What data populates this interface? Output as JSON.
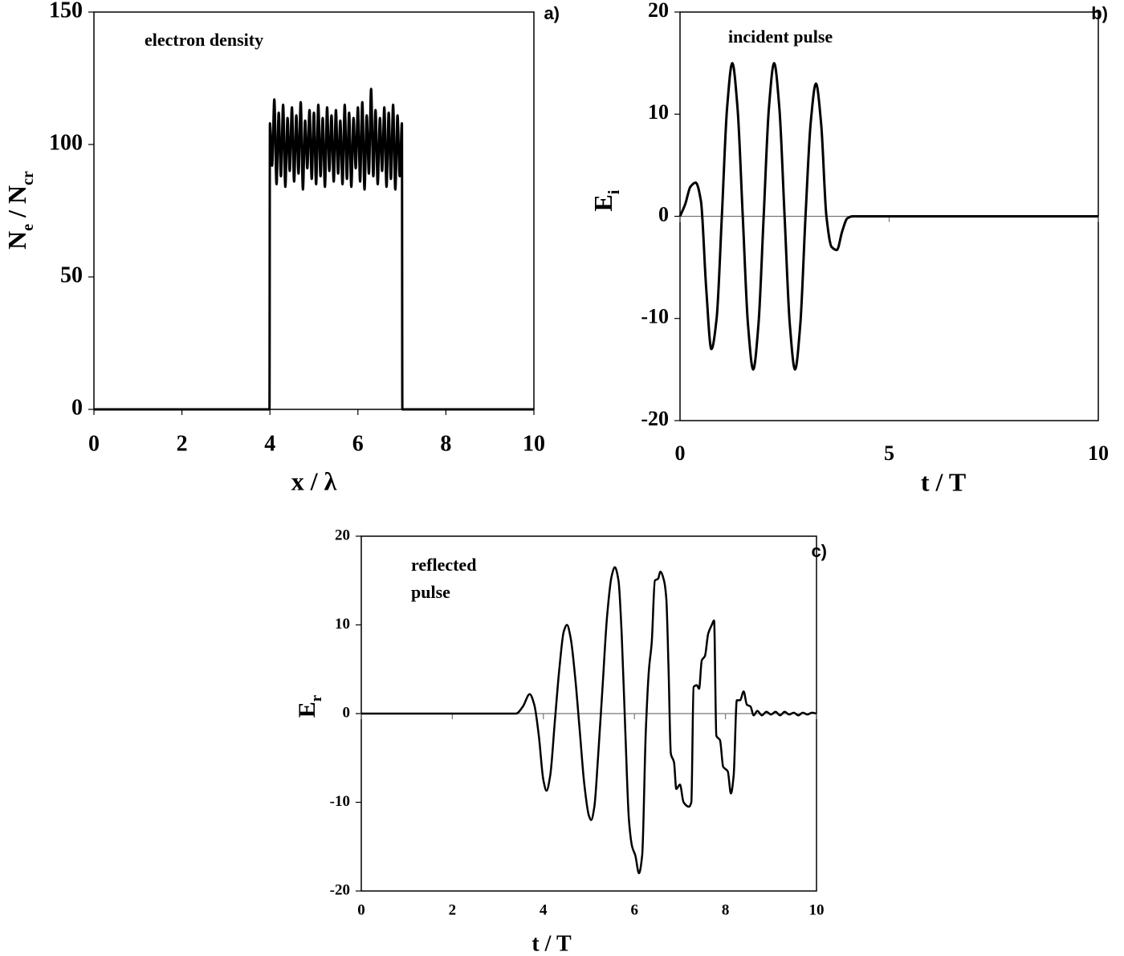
{
  "chart_data": [
    {
      "type": "line",
      "panel_label": "a)",
      "annotation": "electron density",
      "xlabel": "x / λ",
      "ylabel": [
        "N",
        "e",
        " / N",
        "cr"
      ],
      "xlim": [
        0,
        10
      ],
      "xticks": [
        0,
        2,
        4,
        6,
        8,
        10
      ],
      "ylim": [
        0,
        150
      ],
      "yticks": [
        0,
        50,
        100,
        150
      ],
      "zero_line": false,
      "series": [
        {
          "color": "#000000",
          "x": [
            0,
            3.99,
            4,
            4.05,
            4.1,
            4.15,
            4.2,
            4.25,
            4.3,
            4.35,
            4.4,
            4.45,
            4.5,
            4.55,
            4.6,
            4.65,
            4.7,
            4.75,
            4.8,
            4.85,
            4.9,
            4.95,
            5,
            5.05,
            5.1,
            5.15,
            5.2,
            5.25,
            5.3,
            5.35,
            5.4,
            5.45,
            5.5,
            5.55,
            5.6,
            5.65,
            5.7,
            5.75,
            5.8,
            5.85,
            5.9,
            5.95,
            6,
            6.05,
            6.1,
            6.15,
            6.2,
            6.25,
            6.3,
            6.35,
            6.4,
            6.45,
            6.5,
            6.55,
            6.6,
            6.65,
            6.7,
            6.75,
            6.8,
            6.85,
            6.9,
            6.95,
            7,
            7.01,
            10
          ],
          "values": [
            0,
            0,
            108,
            92,
            117,
            85,
            112,
            88,
            115,
            84,
            110,
            90,
            114,
            86,
            111,
            89,
            116,
            83,
            109,
            91,
            113,
            87,
            112,
            85,
            115,
            88,
            110,
            84,
            114,
            90,
            111,
            86,
            113,
            89,
            109,
            85,
            115,
            87,
            112,
            84,
            110,
            91,
            114,
            86,
            116,
            83,
            111,
            89,
            121,
            88,
            113,
            85,
            110,
            90,
            114,
            84,
            112,
            87,
            115,
            83,
            111,
            88,
            108,
            0,
            0
          ]
        }
      ]
    },
    {
      "type": "line",
      "panel_label": "b)",
      "annotation": "incident pulse",
      "xlabel": "t / T",
      "ylabel": [
        "E",
        "i"
      ],
      "xlim": [
        0,
        10
      ],
      "xticks": [
        0,
        5,
        10
      ],
      "ylim": [
        -20,
        20
      ],
      "yticks": [
        -20,
        -10,
        0,
        10,
        20
      ],
      "zero_line": true,
      "series": [
        {
          "color": "#000000",
          "x": [
            0,
            0.125,
            0.25,
            0.375,
            0.5,
            0.625,
            0.75,
            0.875,
            1,
            1.125,
            1.25,
            1.375,
            1.5,
            1.625,
            1.75,
            1.875,
            2,
            2.125,
            2.25,
            2.375,
            2.5,
            2.625,
            2.75,
            2.875,
            3,
            3.125,
            3.25,
            3.375,
            3.5,
            3.625,
            3.75,
            3.875,
            4,
            4.125,
            10
          ],
          "values": [
            0,
            1.2,
            2.9,
            3.3,
            1.5,
            -7,
            -13,
            -10,
            0,
            10.6,
            15,
            10.6,
            0,
            -10.6,
            -15,
            -10.6,
            0,
            10.6,
            15,
            10.6,
            0,
            -10.6,
            -15,
            -10.6,
            0,
            9.2,
            13,
            9,
            0,
            -3,
            -3.3,
            -1.5,
            -0.2,
            0,
            0
          ]
        }
      ]
    },
    {
      "type": "line",
      "panel_label": "c)",
      "annotation": [
        "reflected",
        "pulse"
      ],
      "xlabel": "t / T",
      "ylabel": [
        "E",
        "r"
      ],
      "xlim": [
        0,
        10
      ],
      "xticks": [
        0,
        2,
        4,
        6,
        8,
        10
      ],
      "ylim": [
        -20,
        20
      ],
      "yticks": [
        -20,
        -10,
        0,
        10,
        20
      ],
      "zero_line": true,
      "series": [
        {
          "color": "#000000",
          "x": [
            0,
            3.4,
            3.55,
            3.7,
            3.8,
            3.9,
            4.0,
            4.07,
            4.15,
            4.25,
            4.35,
            4.45,
            4.52,
            4.6,
            4.7,
            4.8,
            4.9,
            5.0,
            5.05,
            5.12,
            5.2,
            5.3,
            5.4,
            5.5,
            5.57,
            5.65,
            5.72,
            5.8,
            5.88,
            5.95,
            6.02,
            6.1,
            6.17,
            6.25,
            6.32,
            6.38,
            6.45,
            6.52,
            6.57,
            6.65,
            6.7,
            6.75,
            6.8,
            6.87,
            6.92,
            7.0,
            7.08,
            7.2,
            7.25,
            7.3,
            7.37,
            7.42,
            7.48,
            7.55,
            7.62,
            7.7,
            7.75,
            7.8,
            7.88,
            7.95,
            8.05,
            8.12,
            8.18,
            8.25,
            8.32,
            8.4,
            8.47,
            8.55,
            8.62,
            8.7,
            8.8,
            8.9,
            9.0,
            9.1,
            9.2,
            9.3,
            9.4,
            9.5,
            9.6,
            9.7,
            9.8,
            9.9,
            10
          ],
          "values": [
            0,
            0,
            0.8,
            2.2,
            1,
            -2.5,
            -7.5,
            -8.7,
            -7,
            -1,
            5,
            9.3,
            10,
            8.5,
            4,
            -2,
            -8,
            -11.5,
            -12,
            -10.5,
            -5,
            3,
            11,
            15.5,
            16.5,
            15,
            9,
            -2,
            -12,
            -15,
            -16,
            -18,
            -16,
            -2,
            5,
            8,
            15,
            15.2,
            16,
            15,
            13,
            5,
            -4.5,
            -5.5,
            -8.5,
            -8,
            -10,
            -10.5,
            -10,
            3,
            3.2,
            2.8,
            6,
            6.5,
            9,
            10,
            10.5,
            -2.5,
            -3,
            -6,
            -6.5,
            -9,
            -7,
            1.5,
            1.5,
            2.5,
            1,
            0.8,
            -0.2,
            0.3,
            -0.2,
            0.2,
            -0.1,
            0.2,
            -0.2,
            0.2,
            -0.1,
            0.1,
            -0.2,
            0.1,
            -0.1,
            0.1,
            0
          ]
        }
      ]
    }
  ]
}
